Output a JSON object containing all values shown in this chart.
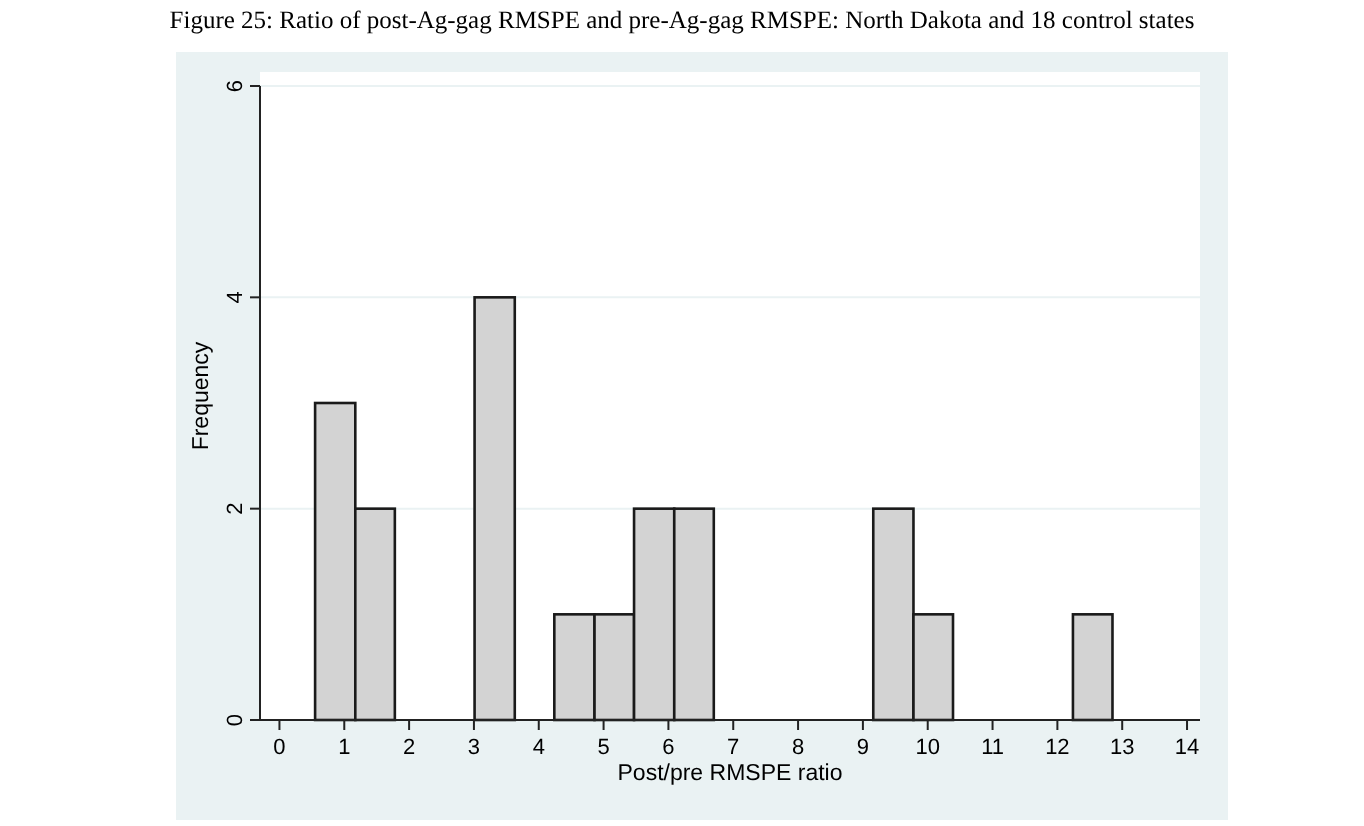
{
  "chart_data": {
    "type": "histogram",
    "title": "Figure 25: Ratio of post-Ag-gag RMSPE and pre-Ag-gag RMSPE: North Dakota and 18 control states",
    "xlabel": "Post/pre RMSPE ratio",
    "ylabel": "Frequency",
    "bins": [
      0.55,
      1.17,
      1.78,
      3.01,
      3.63,
      4.24,
      4.86,
      5.47,
      6.09,
      6.7,
      9.16,
      9.78,
      10.39,
      12.24,
      12.85
    ],
    "values": [
      3,
      2,
      0,
      4,
      0,
      1,
      1,
      2,
      2,
      0,
      2,
      1,
      0,
      1
    ],
    "color": "#d3d3d3",
    "xlim": [
      -0.3,
      14.2
    ],
    "xticks": [
      0,
      1,
      2,
      3,
      4,
      5,
      6,
      7,
      8,
      9,
      10,
      11,
      12,
      13,
      14
    ],
    "ylim": [
      0,
      6
    ],
    "yticks": [
      0,
      2,
      4,
      6
    ],
    "grid": "y"
  }
}
